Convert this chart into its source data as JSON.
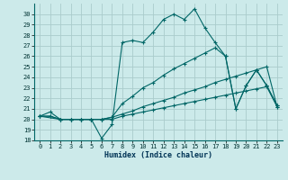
{
  "xlabel": "Humidex (Indice chaleur)",
  "background_color": "#cceaea",
  "grid_color": "#aacccc",
  "line_color": "#006666",
  "xlim": [
    -0.5,
    23.5
  ],
  "ylim": [
    18,
    31
  ],
  "yticks": [
    18,
    19,
    20,
    21,
    22,
    23,
    24,
    25,
    26,
    27,
    28,
    29,
    30
  ],
  "xticks": [
    0,
    1,
    2,
    3,
    4,
    5,
    6,
    7,
    8,
    9,
    10,
    11,
    12,
    13,
    14,
    15,
    16,
    17,
    18,
    19,
    20,
    21,
    22,
    23
  ],
  "line1_x": [
    0,
    1,
    2,
    3,
    4,
    5,
    6,
    7,
    8,
    9,
    10,
    11,
    12,
    13,
    14,
    15,
    16,
    17,
    18,
    19,
    20,
    21,
    22,
    23
  ],
  "line1_y": [
    20.3,
    20.7,
    20.0,
    20.0,
    20.0,
    20.0,
    18.2,
    19.5,
    27.3,
    27.5,
    27.3,
    28.3,
    29.5,
    30.0,
    29.5,
    30.5,
    28.7,
    27.3,
    26.0,
    21.0,
    23.2,
    24.7,
    23.2,
    21.3
  ],
  "line2_x": [
    0,
    2,
    3,
    4,
    5,
    6,
    7,
    8,
    9,
    10,
    11,
    12,
    13,
    14,
    15,
    16,
    17,
    18,
    19,
    20,
    21,
    22,
    23
  ],
  "line2_y": [
    20.3,
    20.0,
    20.0,
    20.0,
    20.0,
    20.0,
    20.2,
    21.5,
    22.2,
    23.0,
    23.5,
    24.2,
    24.8,
    25.3,
    25.8,
    26.3,
    26.8,
    26.0,
    21.0,
    23.2,
    24.7,
    23.2,
    21.3
  ],
  "line3_x": [
    0,
    1,
    2,
    3,
    4,
    5,
    6,
    7,
    8,
    9,
    10,
    11,
    12,
    13,
    14,
    15,
    16,
    17,
    18,
    19,
    20,
    21,
    22,
    23
  ],
  "line3_y": [
    20.3,
    20.3,
    20.0,
    20.0,
    20.0,
    20.0,
    20.0,
    20.2,
    20.5,
    20.8,
    21.2,
    21.5,
    21.8,
    22.1,
    22.5,
    22.8,
    23.1,
    23.5,
    23.8,
    24.1,
    24.4,
    24.7,
    25.0,
    21.2
  ],
  "line4_x": [
    0,
    1,
    2,
    3,
    4,
    5,
    6,
    7,
    8,
    9,
    10,
    11,
    12,
    13,
    14,
    15,
    16,
    17,
    18,
    19,
    20,
    21,
    22,
    23
  ],
  "line4_y": [
    20.3,
    20.3,
    20.0,
    20.0,
    20.0,
    20.0,
    20.0,
    20.0,
    20.3,
    20.5,
    20.7,
    20.9,
    21.1,
    21.3,
    21.5,
    21.7,
    21.9,
    22.1,
    22.3,
    22.5,
    22.7,
    22.9,
    23.1,
    21.2
  ]
}
